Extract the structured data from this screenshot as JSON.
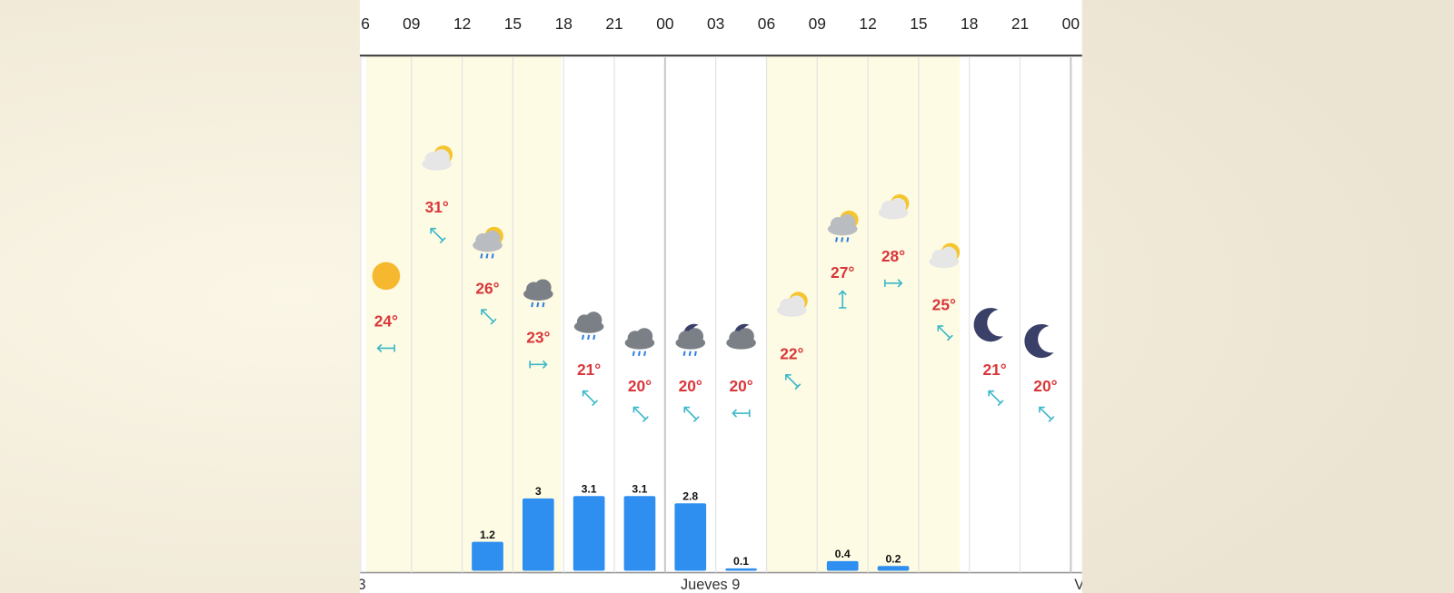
{
  "chart_data": {
    "type": "meteogram",
    "categories": [
      "6",
      "09",
      "12",
      "15",
      "18",
      "21",
      "00",
      "03",
      "06",
      "09",
      "12",
      "15",
      "18",
      "21",
      "00"
    ],
    "temperature": {
      "values": [
        24,
        31,
        26,
        23,
        21,
        20,
        20,
        20,
        22,
        27,
        28,
        25,
        21,
        20
      ],
      "value_labels": [
        "24°",
        "31°",
        "26°",
        "23°",
        "21°",
        "20°",
        "20°",
        "20°",
        "22°",
        "27°",
        "28°",
        "25°",
        "21°",
        "20°"
      ],
      "color": "#d9363a"
    },
    "precipitation": {
      "values": [
        null,
        null,
        1.2,
        3,
        3.1,
        3.1,
        2.8,
        0.1,
        null,
        0.4,
        0.2,
        null,
        null,
        null
      ],
      "color": "#2f8ff0"
    },
    "day_labels": [
      "3",
      "Jueves 9",
      "V"
    ]
  }
}
